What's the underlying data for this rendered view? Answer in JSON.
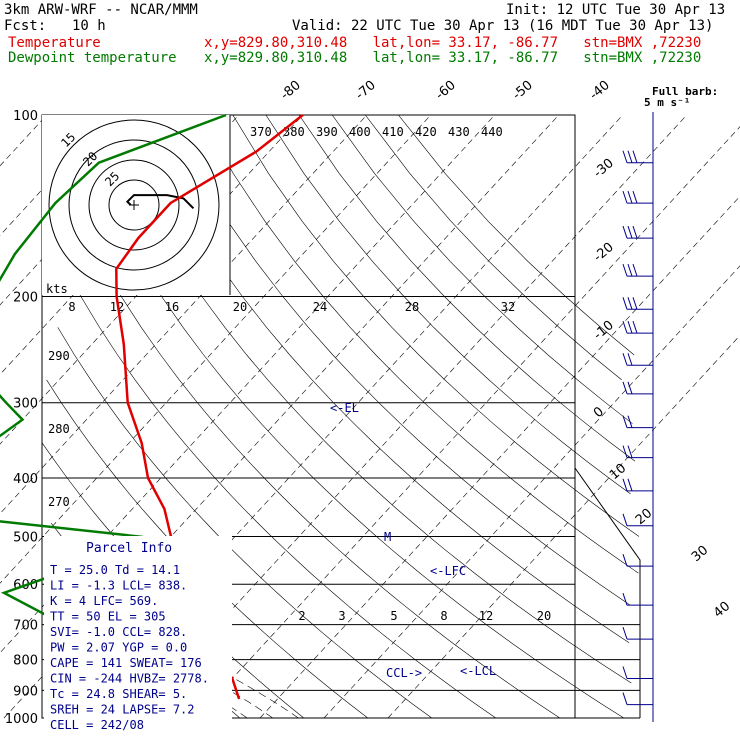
{
  "header": {
    "model": "3km ARW-WRF -- NCAR/MMM",
    "init": "Init: 12 UTC Tue 30 Apr 13",
    "fcst_label": "Fcst:",
    "fcst_value": "10 h",
    "valid": "Valid: 22 UTC Tue 30 Apr 13 (16 MDT Tue 30 Apr 13)",
    "temp_label": "Temperature",
    "temp_loc": "x,y=829.80,310.48   lat,lon= 33.17, -86.77   stn=BMX ,72230",
    "dew_label": "Dewpoint temperature",
    "dew_loc": "x,y=829.80,310.48   lat,lon= 33.17, -86.77   stn=BMX ,72230",
    "barb_title": "Full barb:",
    "barb_units": "5 m s⁻¹"
  },
  "hodograph": {
    "axis_label": "kts",
    "ring_labels": [
      "15",
      "20",
      "25"
    ],
    "hodo_points": [
      [
        -1,
        0
      ],
      [
        -2,
        1
      ],
      [
        0,
        3
      ],
      [
        5,
        3
      ],
      [
        10,
        3
      ],
      [
        15,
        2
      ],
      [
        18,
        -1
      ]
    ]
  },
  "parcel_info": {
    "title": "Parcel Info",
    "lines": [
      "T  =   25.0  Td =  14.1",
      "LI =   -1.3  LCL=  838.",
      "K  =     4   LFC=  569.",
      "TT =    50   EL =  305",
      "SVI=   -1.0  CCL=  828.",
      "PW =   2.07  YGP =  0.0",
      "CAPE =   141  SWEAT=  176",
      "CIN =  -244  HVBZ= 2778.",
      "Tc =   24.8  SHEAR=  5.",
      "SREH =   24  LAPSE=  7.2",
      "CELL = 242/08"
    ]
  },
  "annotations": {
    "el": "<-EL",
    "lfc": "<-LFC",
    "lcl": "<-LCL",
    "ccl": "CCL->",
    "m": "M"
  },
  "chart_data": {
    "type": "skew-t",
    "pressure_levels": [
      100,
      200,
      300,
      400,
      500,
      600,
      700,
      800,
      900,
      1000
    ],
    "pressure_axis_labels": [
      "100",
      "200",
      "300",
      "400",
      "500",
      "600",
      "700",
      "800",
      "900",
      "1000"
    ],
    "temp_tick_labels_top": [
      "-80",
      "-70",
      "-60",
      "-50",
      "-40"
    ],
    "temp_tick_labels_right": [
      "-30",
      "-20",
      "-10",
      "0",
      "10",
      "20",
      "30",
      "40"
    ],
    "theta_labels": [
      "370",
      "380",
      "390",
      "400",
      "410",
      "420",
      "430",
      "440"
    ],
    "theta_left_labels": [
      "290",
      "280",
      "270"
    ],
    "mixing_ratio_labels_upper": [
      "8",
      "12",
      "16",
      "20",
      "24",
      "28",
      "32"
    ],
    "mixing_ratio_labels_lower": [
      "2",
      "3",
      "5",
      "8",
      "12",
      "20"
    ],
    "series": [
      {
        "name": "Temperature",
        "color": "#e00000",
        "points": [
          [
            100,
            -50
          ],
          [
            115,
            -52
          ],
          [
            140,
            -58
          ],
          [
            160,
            -58
          ],
          [
            180,
            -57
          ],
          [
            200,
            -53
          ],
          [
            240,
            -45
          ],
          [
            300,
            -36
          ],
          [
            350,
            -28
          ],
          [
            400,
            -22
          ],
          [
            450,
            -15
          ],
          [
            500,
            -10
          ],
          [
            560,
            -4
          ],
          [
            620,
            2
          ],
          [
            680,
            7
          ],
          [
            760,
            12
          ],
          [
            810,
            16
          ],
          [
            860,
            20
          ],
          [
            930,
            24
          ]
        ]
      },
      {
        "name": "Dewpoint temperature",
        "color": "#007a00",
        "points": [
          [
            100,
            -62
          ],
          [
            120,
            -75
          ],
          [
            140,
            -76
          ],
          [
            170,
            -75
          ],
          [
            200,
            -73
          ],
          [
            240,
            -68
          ],
          [
            280,
            -64
          ],
          [
            300,
            -55
          ],
          [
            320,
            -50
          ],
          [
            350,
            -58
          ],
          [
            400,
            -60
          ],
          [
            430,
            -66
          ],
          [
            470,
            -45
          ],
          [
            500,
            -15
          ],
          [
            560,
            -20
          ],
          [
            620,
            -28
          ],
          [
            700,
            -14
          ],
          [
            790,
            3
          ],
          [
            820,
            11
          ],
          [
            830,
            13
          ],
          [
            900,
            14
          ],
          [
            940,
            12
          ]
        ]
      }
    ],
    "wind_barbs": [
      {
        "p": 120,
        "flags": 3
      },
      {
        "p": 140,
        "flags": 3
      },
      {
        "p": 160,
        "flags": 3
      },
      {
        "p": 185,
        "flags": 3
      },
      {
        "p": 210,
        "flags": 3
      },
      {
        "p": 230,
        "flags": 3
      },
      {
        "p": 260,
        "flags": 2
      },
      {
        "p": 290,
        "flags": 2
      },
      {
        "p": 330,
        "flags": 2
      },
      {
        "p": 370,
        "flags": 2
      },
      {
        "p": 420,
        "flags": 2
      },
      {
        "p": 480,
        "flags": 1
      },
      {
        "p": 560,
        "flags": 1
      },
      {
        "p": 650,
        "flags": 1
      },
      {
        "p": 740,
        "flags": 1
      },
      {
        "p": 860,
        "flags": 1
      },
      {
        "p": 950,
        "flags": 1
      }
    ]
  }
}
